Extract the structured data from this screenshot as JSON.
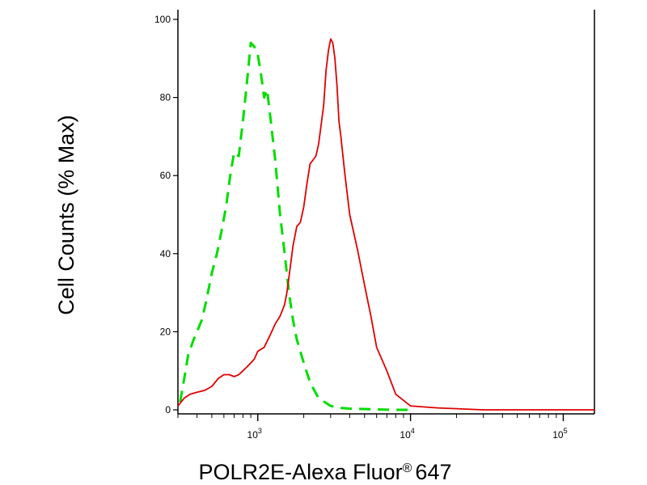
{
  "chart_data": {
    "type": "line",
    "xlabel": "POLR2E-Alexa Fluor",
    "xlabel_mark": "®",
    "xlabel_suffix": "647",
    "ylabel": "Cell Counts (% Max)",
    "xscale": "log",
    "xlim": [
      300,
      160000
    ],
    "ylim": [
      0,
      100
    ],
    "y_ticks": [
      0,
      20,
      40,
      60,
      80,
      100
    ],
    "x_tick_labels": [
      {
        "value": 1000,
        "base": "10",
        "exp": "3"
      },
      {
        "value": 10000,
        "base": "10",
        "exp": "4"
      },
      {
        "value": 100000,
        "base": "10",
        "exp": "5"
      }
    ],
    "grid": false,
    "legend": "none",
    "series": [
      {
        "color": "#00dd00",
        "style": "dashed",
        "x": [
          310,
          330,
          350,
          380,
          400,
          430,
          460,
          500,
          540,
          580,
          620,
          660,
          700,
          750,
          800,
          850,
          900,
          950,
          1000,
          1050,
          1100,
          1150,
          1200,
          1300,
          1400,
          1500,
          1600,
          1700,
          1800,
          2000,
          2200,
          2500,
          3000,
          3500,
          4000,
          5000,
          6000,
          8000,
          10000
        ],
        "y": [
          2,
          8,
          14,
          18,
          20,
          23,
          28,
          35,
          40,
          46,
          52,
          60,
          66,
          65,
          74,
          84,
          94,
          93,
          91,
          86,
          80,
          82,
          76,
          64,
          50,
          40,
          30,
          23,
          18,
          12,
          7,
          3,
          1,
          0.5,
          0.3,
          0.2,
          0.1,
          0,
          0
        ]
      },
      {
        "color": "#e00000",
        "style": "solid",
        "x": [
          300,
          330,
          360,
          400,
          450,
          500,
          550,
          600,
          650,
          700,
          750,
          800,
          850,
          900,
          950,
          1000,
          1100,
          1200,
          1300,
          1400,
          1500,
          1550,
          1600,
          1700,
          1800,
          1900,
          2000,
          2100,
          2200,
          2300,
          2400,
          2500,
          2600,
          2700,
          2800,
          2900,
          3000,
          3100,
          3200,
          3300,
          3400,
          3500,
          3700,
          4000,
          4500,
          5000,
          5500,
          6000,
          7000,
          8000,
          10000,
          15000,
          30000,
          60000,
          100000,
          160000
        ],
        "y": [
          1,
          3,
          4,
          4.5,
          5,
          6,
          8,
          9,
          9,
          8.5,
          9,
          10,
          11,
          12,
          13,
          15,
          16,
          19,
          22,
          24,
          27,
          30,
          34,
          42,
          47,
          48,
          52,
          58,
          63,
          64,
          65,
          68,
          73,
          78,
          87,
          92,
          95,
          94,
          90,
          83,
          74,
          70,
          61,
          50,
          41,
          32,
          24,
          16,
          10,
          4,
          1,
          0.5,
          0,
          0,
          0,
          0
        ]
      }
    ]
  }
}
